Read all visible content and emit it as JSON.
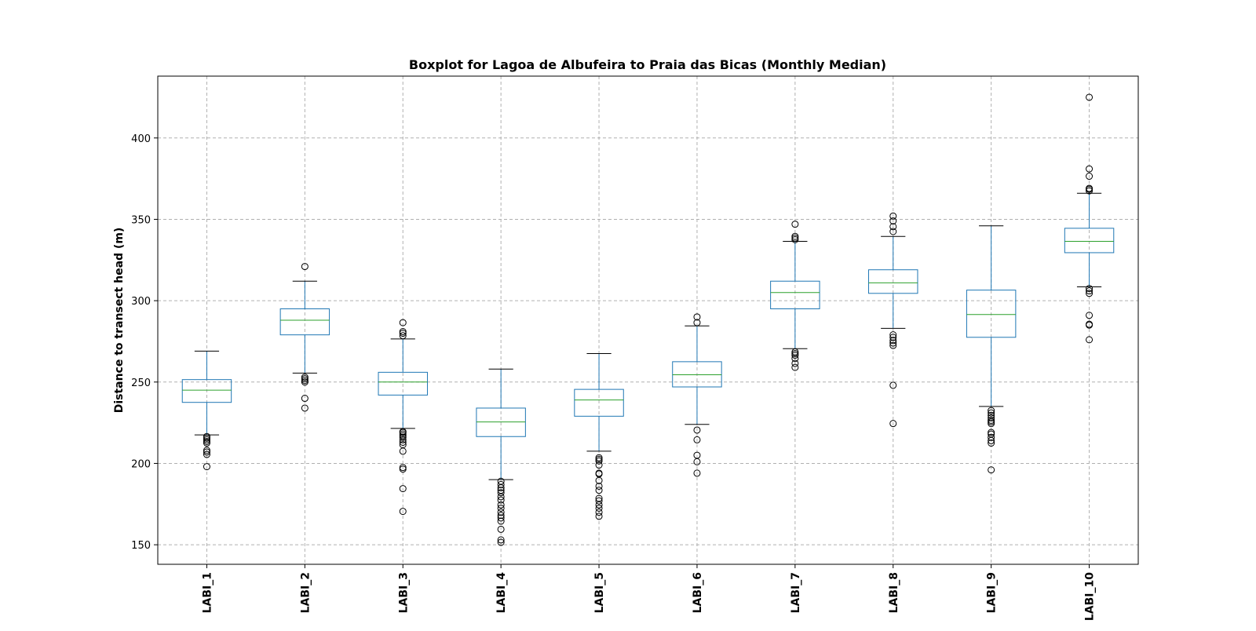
{
  "chart_data": {
    "type": "boxplot",
    "title": "Boxplot for Lagoa de Albufeira to Praia das Bicas (Monthly Median)",
    "xlabel": "",
    "ylabel": "Distance to transect head (m)",
    "ylim": [
      138,
      438
    ],
    "yticks": [
      150,
      200,
      250,
      300,
      350,
      400
    ],
    "ytick_labels": [
      "150",
      "200",
      "250",
      "300",
      "350",
      "400"
    ],
    "grid": true,
    "categories": [
      "LABI_1",
      "LABI_2",
      "LABI_3",
      "LABI_4",
      "LABI_5",
      "LABI_6",
      "LABI_7",
      "LABI_8",
      "LABI_9",
      "LABI_10"
    ],
    "boxes": [
      {
        "name": "LABI_1",
        "whisker_low": 217.5,
        "q1": 237.5,
        "median": 245,
        "q3": 251.5,
        "whisker_high": 269,
        "outliers": [
          198,
          205.5,
          207,
          208,
          212.5,
          213.5,
          214.5,
          215.5,
          216.5
        ]
      },
      {
        "name": "LABI_2",
        "whisker_low": 255.5,
        "q1": 279,
        "median": 288,
        "q3": 295,
        "whisker_high": 312,
        "outliers": [
          234,
          240,
          250,
          251,
          252,
          253,
          321
        ]
      },
      {
        "name": "LABI_3",
        "whisker_low": 221.5,
        "q1": 242,
        "median": 250,
        "q3": 256,
        "whisker_high": 276.5,
        "outliers": [
          170.5,
          184.5,
          196.5,
          197.5,
          207.5,
          211.5,
          213,
          214.5,
          216,
          217,
          218,
          219,
          219.5,
          278.5,
          280,
          281,
          286.5
        ]
      },
      {
        "name": "LABI_4",
        "whisker_low": 190,
        "q1": 216.5,
        "median": 225.5,
        "q3": 234,
        "whisker_high": 258,
        "outliers": [
          151.5,
          153,
          159.5,
          164.5,
          166.5,
          168,
          170,
          172.5,
          174.5,
          177.5,
          179.5,
          182,
          183.5,
          185,
          187,
          189
        ]
      },
      {
        "name": "LABI_5",
        "whisker_low": 207.5,
        "q1": 229,
        "median": 239,
        "q3": 245.5,
        "whisker_high": 267.5,
        "outliers": [
          167.5,
          170,
          172.5,
          174.5,
          177,
          178.5,
          183.5,
          186,
          189.5,
          193.5,
          194,
          199,
          201.5,
          202.5,
          203.5
        ]
      },
      {
        "name": "LABI_6",
        "whisker_low": 224,
        "q1": 247,
        "median": 254.5,
        "q3": 262.5,
        "whisker_high": 284.5,
        "outliers": [
          194,
          201,
          205,
          214.5,
          220.5,
          286.5,
          290
        ]
      },
      {
        "name": "LABI_7",
        "whisker_low": 270.5,
        "q1": 295,
        "median": 305,
        "q3": 312,
        "whisker_high": 336.5,
        "outliers": [
          259,
          261.5,
          264.5,
          266.5,
          267.5,
          268.5,
          337.5,
          338.5,
          339.5,
          347
        ]
      },
      {
        "name": "LABI_8",
        "whisker_low": 283,
        "q1": 304.5,
        "median": 311,
        "q3": 319,
        "whisker_high": 339.5,
        "outliers": [
          224.5,
          248,
          272.5,
          274,
          275.5,
          277.5,
          279,
          342.5,
          345.5,
          349,
          352
        ]
      },
      {
        "name": "LABI_9",
        "whisker_low": 235,
        "q1": 277.5,
        "median": 291.5,
        "q3": 306.5,
        "whisker_high": 346,
        "outliers": [
          196,
          212.5,
          214,
          216,
          218,
          219,
          224.5,
          225.5,
          226.5,
          228,
          229.5,
          231,
          232.5
        ]
      },
      {
        "name": "LABI_10",
        "whisker_low": 308.5,
        "q1": 329.5,
        "median": 336.5,
        "q3": 344.5,
        "whisker_high": 366,
        "outliers": [
          276,
          285,
          285.5,
          291,
          304.5,
          306,
          307.5,
          367.5,
          368.5,
          369,
          376.5,
          381,
          425
        ]
      }
    ],
    "colors": {
      "box": "#1f77b4",
      "median": "#2ca02c",
      "whisker_cap": "#000000",
      "outlier": "#000000",
      "grid": "#b0b0b0",
      "axes": "#000000"
    }
  }
}
